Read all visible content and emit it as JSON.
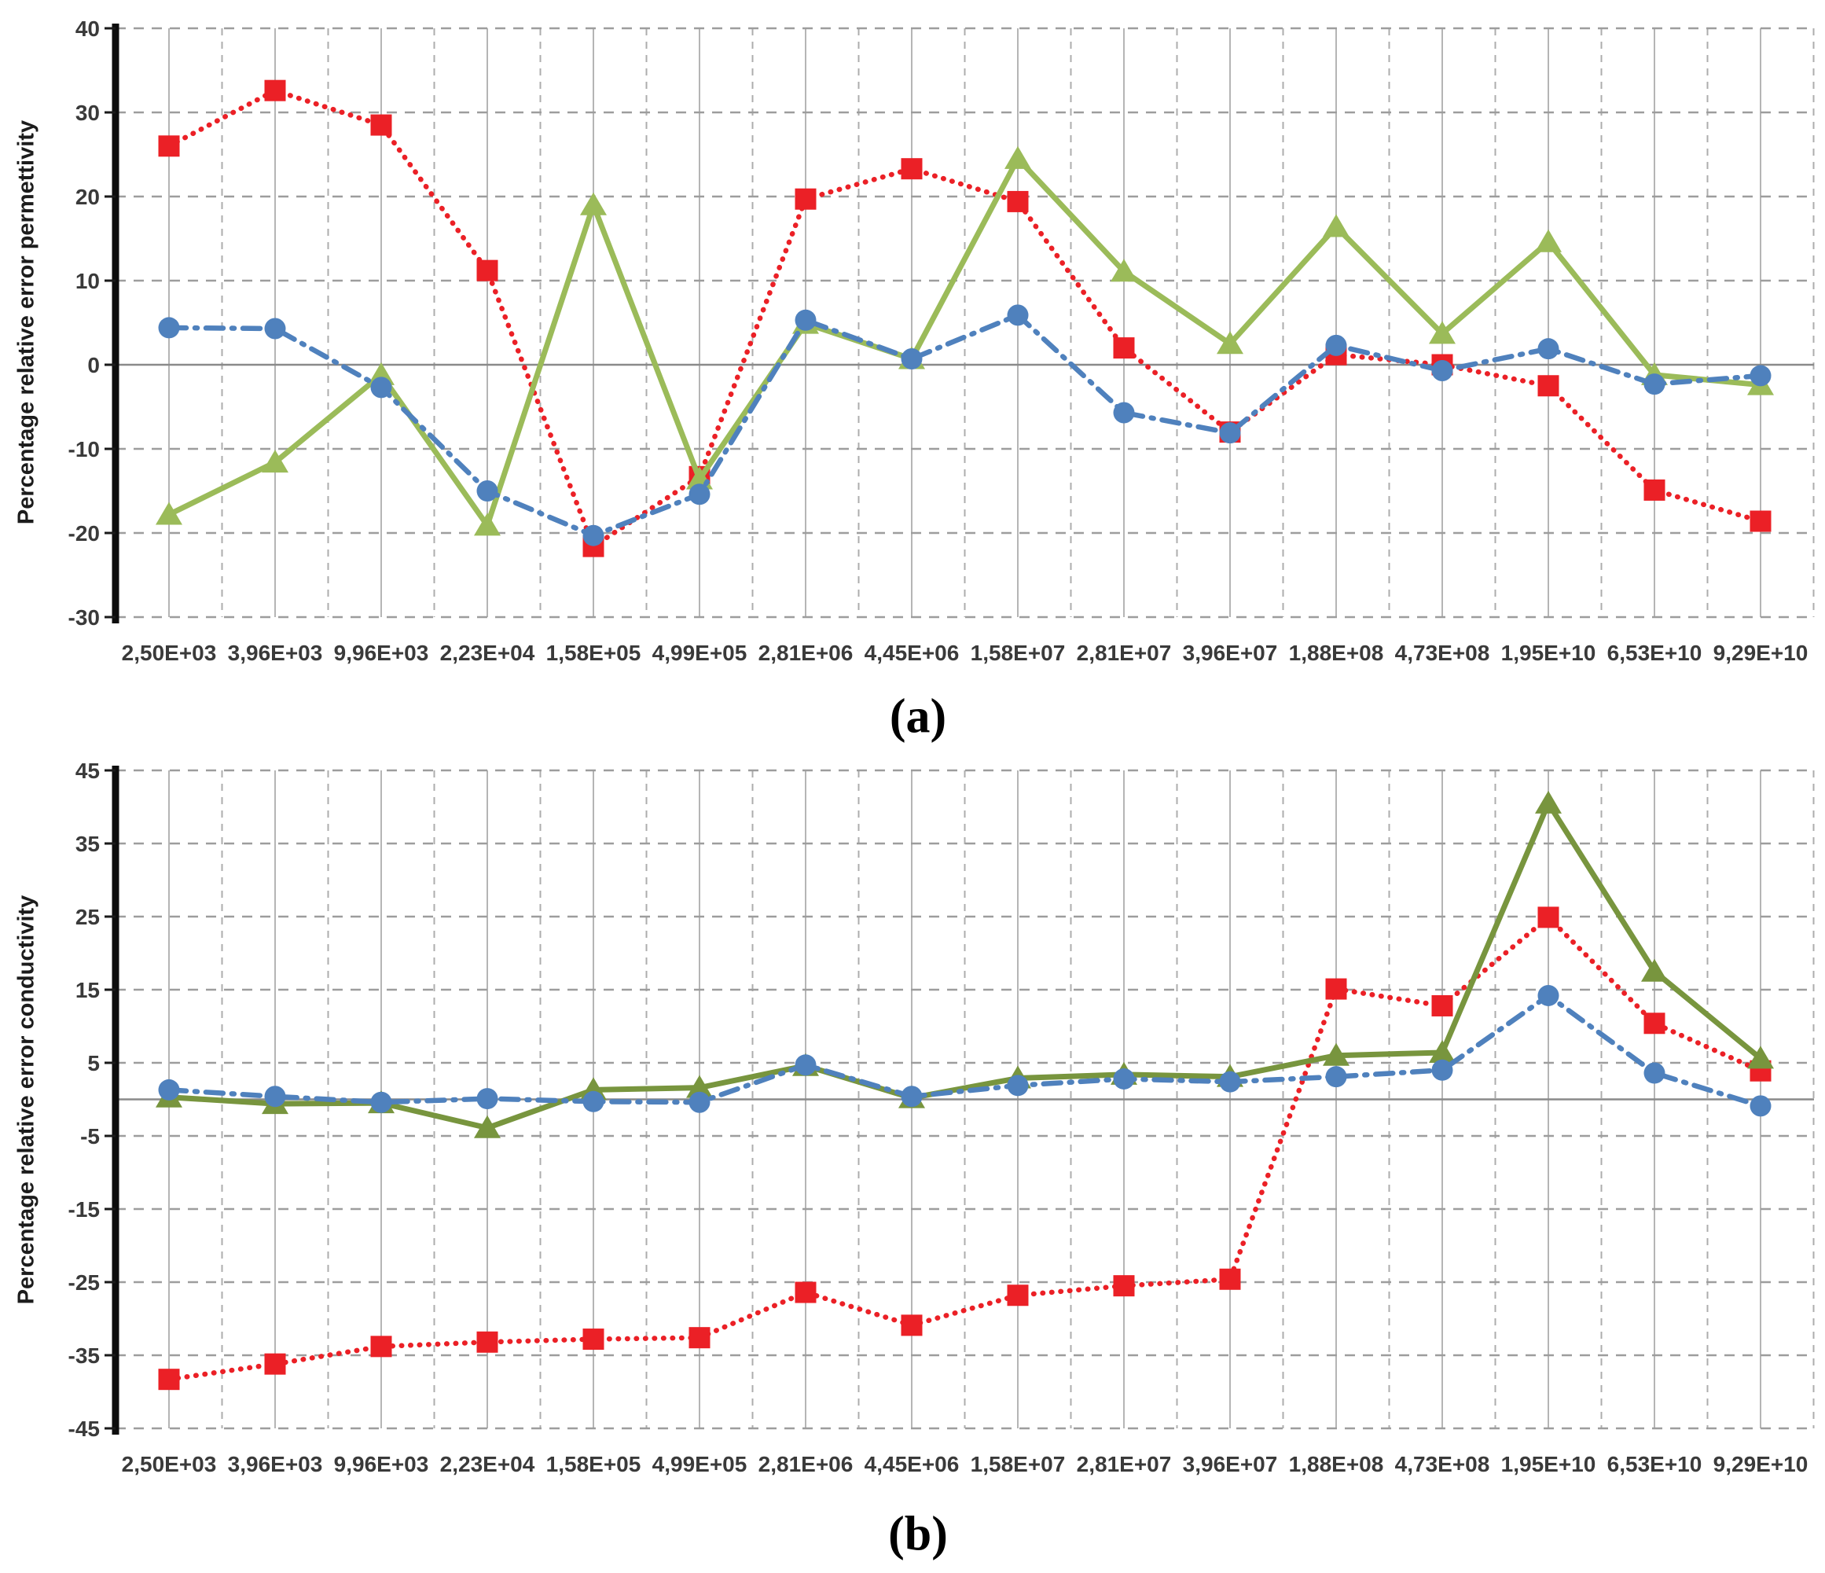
{
  "page": {
    "background": "#ffffff"
  },
  "chart_data": [
    {
      "type": "line",
      "caption": "(a)",
      "y_axis_title": "Percentage relative error permettivity",
      "ylim": [
        -30,
        40
      ],
      "ytick_step": 10,
      "y_ticks": [
        40,
        30,
        20,
        10,
        0,
        -10,
        -20,
        -30
      ],
      "zero_line": 0,
      "grid": "dashed horizontal every 10, solid+dashed vertical per category, solid gray zero line",
      "legend_position": "none",
      "categories": [
        "2,50E+03",
        "3,96E+03",
        "9,96E+03",
        "2,23E+04",
        "1,58E+05",
        "4,99E+05",
        "2,81E+06",
        "4,45E+06",
        "1,58E+07",
        "2,81E+07",
        "3,96E+07",
        "1,88E+08",
        "4,73E+08",
        "1,95E+10",
        "6,53E+10",
        "9,29E+10"
      ],
      "series": [
        {
          "name": "red-dotted-squares",
          "color": "#EB2026",
          "marker": "square",
          "line_style": "dotted",
          "values": [
            26.0,
            32.6,
            28.5,
            11.2,
            -21.6,
            -13.3,
            19.7,
            23.3,
            19.4,
            2.0,
            -8.0,
            1.2,
            0.0,
            -2.5,
            -14.9,
            -18.6
          ]
        },
        {
          "name": "green-solid-triangles",
          "color": "#9BBB59",
          "marker": "triangle",
          "line_style": "solid",
          "values": [
            -17.8,
            -11.6,
            -1.2,
            -19.1,
            19.0,
            -13.6,
            4.9,
            0.7,
            24.5,
            11.1,
            2.5,
            16.4,
            3.7,
            14.6,
            -1.2,
            -2.4
          ]
        },
        {
          "name": "blue-dashdot-circles",
          "color": "#4F81BD",
          "marker": "circle",
          "line_style": "dashdot",
          "values": [
            4.4,
            4.3,
            -2.7,
            -15.0,
            -20.3,
            -15.4,
            5.3,
            0.7,
            5.9,
            -5.7,
            -8.1,
            2.3,
            -0.7,
            1.9,
            -2.3,
            -1.3
          ]
        }
      ]
    },
    {
      "type": "line",
      "caption": "(b)",
      "y_axis_title": "Percentage relative error conductivity",
      "ylim": [
        -45,
        45
      ],
      "ytick_step": 10,
      "y_ticks": [
        45,
        35,
        25,
        15,
        5,
        -5,
        -15,
        -25,
        -35,
        -45
      ],
      "zero_line": 0,
      "grid": "dashed horizontal every 10, solid+dashed vertical per category, solid gray zero line",
      "legend_position": "none",
      "categories": [
        "2,50E+03",
        "3,96E+03",
        "9,96E+03",
        "2,23E+04",
        "1,58E+05",
        "4,99E+05",
        "2,81E+06",
        "4,45E+06",
        "1,58E+07",
        "2,81E+07",
        "3,96E+07",
        "1,88E+08",
        "4,73E+08",
        "1,95E+10",
        "6,53E+10",
        "9,29E+10"
      ],
      "series": [
        {
          "name": "red-dotted-squares",
          "color": "#EB2026",
          "marker": "square",
          "line_style": "dotted",
          "values": [
            -38.3,
            -36.2,
            -33.8,
            -33.2,
            -32.8,
            -32.6,
            -26.4,
            -30.9,
            -26.8,
            -25.5,
            -24.6,
            15.1,
            12.8,
            24.9,
            10.4,
            3.9
          ]
        },
        {
          "name": "green-solid-triangles",
          "color": "#78953E",
          "marker": "triangle",
          "line_style": "solid",
          "values": [
            0.3,
            -0.6,
            -0.5,
            -3.9,
            1.3,
            1.6,
            4.6,
            0.2,
            2.9,
            3.4,
            3.1,
            6.0,
            6.4,
            40.5,
            17.5,
            5.6
          ]
        },
        {
          "name": "blue-dashdot-circles",
          "color": "#4F81BD",
          "marker": "circle",
          "line_style": "dashdot",
          "values": [
            1.3,
            0.4,
            -0.4,
            0.1,
            -0.3,
            -0.4,
            4.7,
            0.4,
            1.9,
            2.8,
            2.4,
            3.1,
            4.0,
            14.2,
            3.6,
            -0.9
          ]
        }
      ]
    }
  ]
}
